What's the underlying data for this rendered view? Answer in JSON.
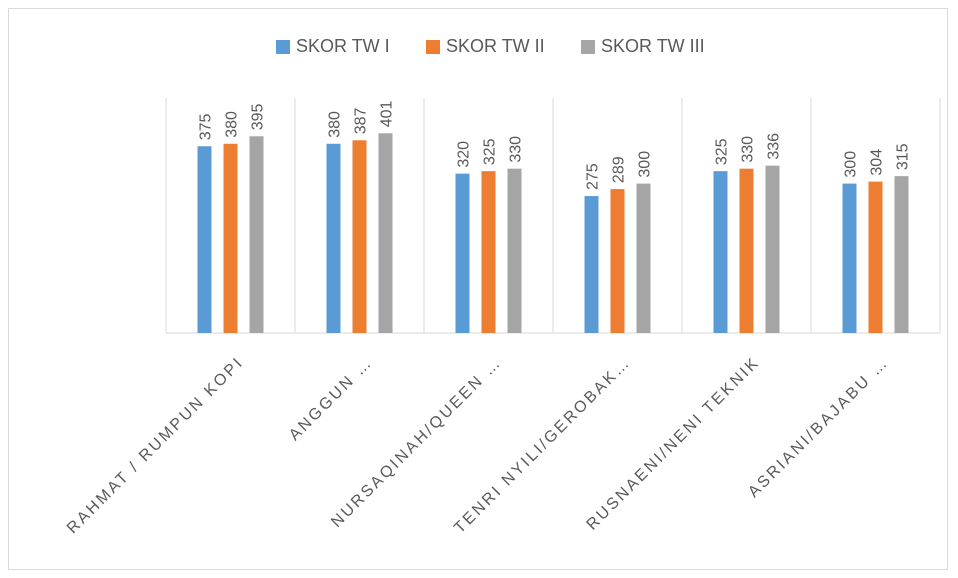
{
  "chart_data": {
    "type": "bar",
    "title": "",
    "xlabel": "",
    "ylabel": "",
    "categories": [
      "RAHMAT / RUMPUN KOPI",
      "ANGGUN …",
      "NURSAQINAH/QUEEN …",
      "TENRI NYILI/GEROBAK…",
      "RUSNAENI/NENI TEKNIK",
      "ASRIANI/BAJABU …"
    ],
    "series": [
      {
        "name": "SKOR TW I",
        "color": "#5b9bd5",
        "values": [
          375,
          380,
          320,
          275,
          325,
          300
        ]
      },
      {
        "name": "SKOR TW II",
        "color": "#ed7d31",
        "values": [
          380,
          387,
          325,
          289,
          330,
          304
        ]
      },
      {
        "name": "SKOR TW III",
        "color": "#a5a5a5",
        "values": [
          395,
          401,
          330,
          300,
          336,
          315
        ]
      }
    ],
    "ylim": [
      0,
      410
    ],
    "grid": false,
    "legend_position": "top",
    "data_labels": true,
    "data_label_rotation": "vertical"
  }
}
